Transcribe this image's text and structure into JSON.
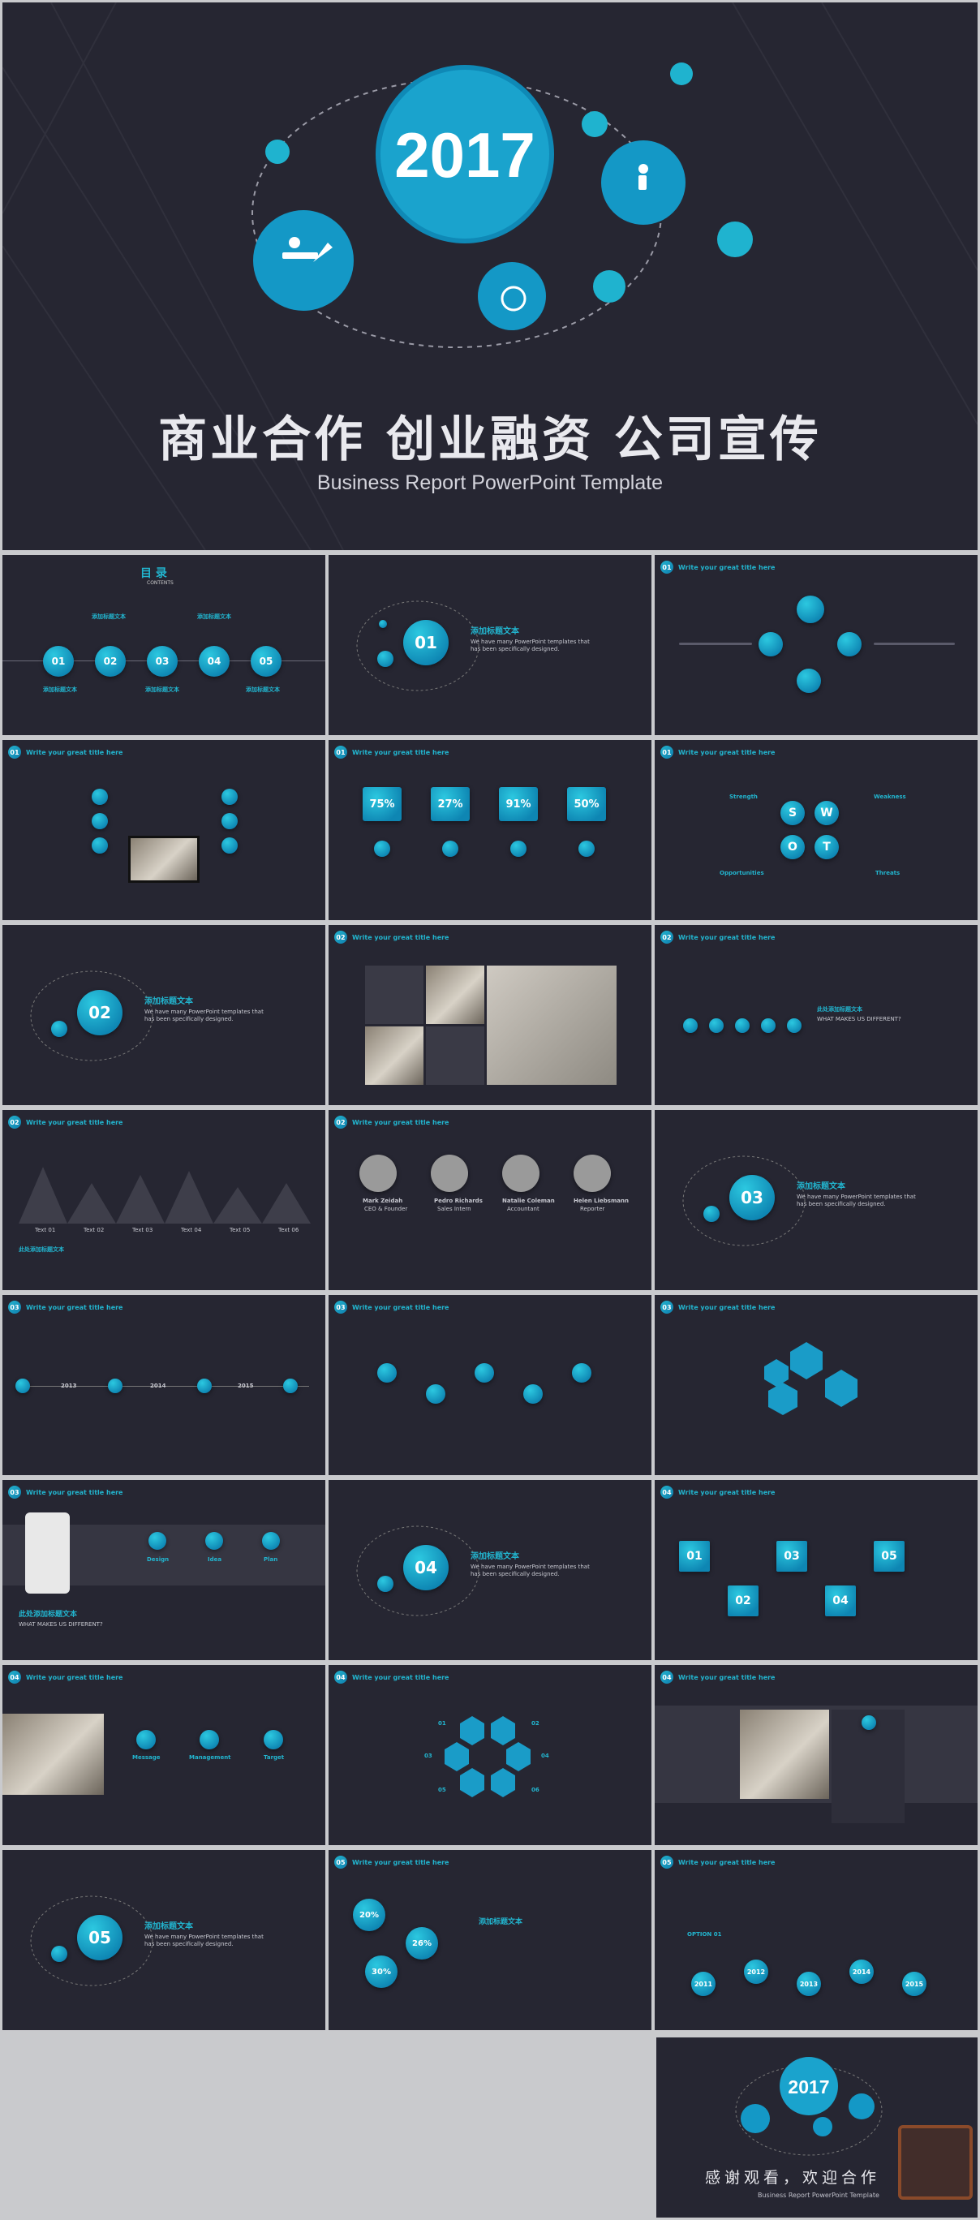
{
  "cover": {
    "year": "2017",
    "title": "商业合作  创业融资  公司宣传",
    "subtitle": "Business Report PowerPoint Template"
  },
  "slide_header": "Write your great title here",
  "toc": {
    "title": "目 录",
    "subtitle": "CONTENTS",
    "item_label": "添加标题文本",
    "numbers": [
      "01",
      "02",
      "03",
      "04",
      "05"
    ]
  },
  "section_label": "添加标题文本",
  "section_text": "We have many PowerPoint templates that has been specifically designed.",
  "sections": [
    "01",
    "02",
    "03",
    "04",
    "05"
  ],
  "percent_blocks": [
    "75%",
    "27%",
    "91%",
    "50%"
  ],
  "swot": [
    "S",
    "W",
    "O",
    "T"
  ],
  "swot_labels": [
    "Strength",
    "Weakness",
    "Opportunities",
    "Threats"
  ],
  "team": [
    {
      "name": "Mark Zeidah",
      "role": "CEO & Founder"
    },
    {
      "name": "Pedro Richards",
      "role": "Sales Intern"
    },
    {
      "name": "Natalie Coleman",
      "role": "Accountant"
    },
    {
      "name": "Helen Liebsmann",
      "role": "Reporter"
    }
  ],
  "timeline_years": [
    "2013",
    "2014",
    "2015"
  ],
  "why_title": "此处添加标题文本",
  "why_sub": "WHAT MAKES US DIFFERENT?",
  "icons_row": [
    "Design",
    "Idea",
    "Plan"
  ],
  "message_row": [
    "Message",
    "Management",
    "Target"
  ],
  "number_boxes": [
    "01",
    "03",
    "05",
    "02",
    "04"
  ],
  "hex_numbers": [
    "01",
    "02",
    "03",
    "04",
    "05",
    "06"
  ],
  "hills": [
    "Text 01",
    "Text 02",
    "Text 03",
    "Text 04",
    "Text 05",
    "Text 06"
  ],
  "year_bubbles": [
    "20%",
    "26%",
    "30%"
  ],
  "option_years": [
    "2011",
    "2012",
    "2013",
    "2014",
    "2015"
  ],
  "option_label": "OPTION 01",
  "ending": {
    "year": "2017",
    "thanks": "感谢观看，欢迎合作",
    "subtitle": "Business Report PowerPoint Template"
  },
  "colors": {
    "bg": "#262632",
    "accent": "#22b5cf",
    "accent_dark": "#0e86b3"
  }
}
